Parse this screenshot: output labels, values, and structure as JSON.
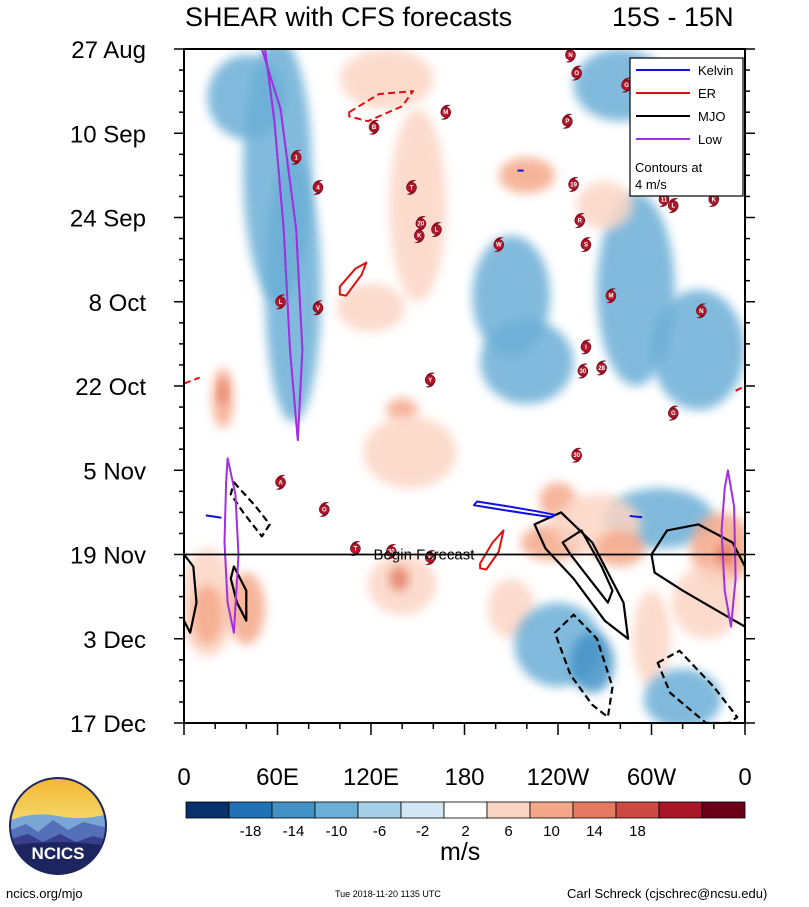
{
  "title_left": "SHEAR with CFS forecasts",
  "title_right": "15S - 15N",
  "footer": {
    "left": "ncics.org/mjo",
    "middle": "Tue 2018-11-20 1135 UTC",
    "right": "Carl Schreck (cjschrec@ncsu.edu)"
  },
  "logo_text": "NCICS",
  "colors": {
    "kelvin": "#1010e0",
    "er": "#e01010",
    "mjo": "#000000",
    "low": "#a030e0"
  },
  "chart_data": {
    "type": "heatmap",
    "title": "SHEAR with CFS forecasts",
    "subtitle": "15S - 15N",
    "x_ticks": [
      "0",
      "60E",
      "120E",
      "180",
      "120W",
      "60W",
      "0"
    ],
    "x_tick_degrees": [
      0,
      60,
      120,
      180,
      240,
      300,
      360
    ],
    "xlim": [
      0,
      360
    ],
    "y_ticks": [
      "27 Aug",
      "10 Sep",
      "24 Sep",
      "8 Oct",
      "22 Oct",
      "5 Nov",
      "19 Nov",
      "3 Dec",
      "17 Dec"
    ],
    "y_tick_days": [
      0,
      14,
      28,
      42,
      56,
      70,
      84,
      98,
      112
    ],
    "ylim": [
      0,
      112
    ],
    "forecast_day": 84,
    "forecast_label": "Begin Forecast",
    "legend": [
      {
        "name": "Kelvin",
        "color": "#1010e0"
      },
      {
        "name": "ER",
        "color": "#e01010"
      },
      {
        "name": "MJO",
        "color": "#000000"
      },
      {
        "name": "Low",
        "color": "#a030e0"
      }
    ],
    "legend_note_1": "Contours at",
    "legend_note_2": "4 m/s",
    "colorbar": {
      "units": "m/s",
      "labels": [
        "-18",
        "-14",
        "-10",
        "-6",
        "-2",
        "2",
        "6",
        "10",
        "14",
        "18"
      ],
      "colors": [
        "#08306b",
        "#2171b5",
        "#4292c6",
        "#6baed6",
        "#a6cfe8",
        "#d2e6f3",
        "#ffffff",
        "#fbd5c4",
        "#f4a889",
        "#e47a62",
        "#cd4a42",
        "#a81628",
        "#6b0019"
      ]
    },
    "field_blobs": [
      {
        "lon": 60,
        "day": 20,
        "rx": 22,
        "ry": 22,
        "v": -6
      },
      {
        "lon": 70,
        "day": 40,
        "rx": 18,
        "ry": 22,
        "v": -6
      },
      {
        "lon": 40,
        "day": 8,
        "rx": 25,
        "ry": 7,
        "v": -6
      },
      {
        "lon": 130,
        "day": 5,
        "rx": 30,
        "ry": 5,
        "v": 6
      },
      {
        "lon": 220,
        "day": 10,
        "rx": 40,
        "ry": 4,
        "v": -2
      },
      {
        "lon": 280,
        "day": 6,
        "rx": 30,
        "ry": 6,
        "v": -6
      },
      {
        "lon": 290,
        "day": 40,
        "rx": 25,
        "ry": 16,
        "v": -6
      },
      {
        "lon": 210,
        "day": 41,
        "rx": 25,
        "ry": 10,
        "v": -6
      },
      {
        "lon": 220,
        "day": 52,
        "rx": 30,
        "ry": 7,
        "v": -6
      },
      {
        "lon": 330,
        "day": 50,
        "rx": 30,
        "ry": 10,
        "v": -6
      },
      {
        "lon": 305,
        "day": 78,
        "rx": 35,
        "ry": 5,
        "v": -6
      },
      {
        "lon": 150,
        "day": 26,
        "rx": 18,
        "ry": 16,
        "v": 6
      },
      {
        "lon": 220,
        "day": 21,
        "rx": 18,
        "ry": 3,
        "v": 10
      },
      {
        "lon": 270,
        "day": 26,
        "rx": 18,
        "ry": 4,
        "v": 6
      },
      {
        "lon": 120,
        "day": 43,
        "rx": 22,
        "ry": 4,
        "v": 6
      },
      {
        "lon": 140,
        "day": 60,
        "rx": 10,
        "ry": 2,
        "v": 10
      },
      {
        "lon": 25,
        "day": 58,
        "rx": 7,
        "ry": 5,
        "v": 10
      },
      {
        "lon": 25,
        "day": 57,
        "rx": 3,
        "ry": 2,
        "v": 14
      },
      {
        "lon": 145,
        "day": 67,
        "rx": 30,
        "ry": 6,
        "v": 6
      },
      {
        "lon": 240,
        "day": 75,
        "rx": 12,
        "ry": 3,
        "v": 10
      },
      {
        "lon": 236,
        "day": 82,
        "rx": 20,
        "ry": 3,
        "v": 10
      },
      {
        "lon": 265,
        "day": 79,
        "rx": 28,
        "ry": 5,
        "v": 6
      },
      {
        "lon": 280,
        "day": 83,
        "rx": 16,
        "ry": 3,
        "v": 10
      },
      {
        "lon": 345,
        "day": 83,
        "rx": 20,
        "ry": 6,
        "v": 10
      },
      {
        "lon": 348,
        "day": 84,
        "rx": 6,
        "ry": 2,
        "v": 14
      },
      {
        "lon": 15,
        "day": 92,
        "rx": 18,
        "ry": 9,
        "v": 6
      },
      {
        "lon": 15,
        "day": 94,
        "rx": 10,
        "ry": 5,
        "v": 10
      },
      {
        "lon": 40,
        "day": 93,
        "rx": 12,
        "ry": 6,
        "v": 10
      },
      {
        "lon": 140,
        "day": 89,
        "rx": 22,
        "ry": 5,
        "v": 6
      },
      {
        "lon": 138,
        "day": 88,
        "rx": 6,
        "ry": 2,
        "v": 14
      },
      {
        "lon": 210,
        "day": 93,
        "rx": 15,
        "ry": 5,
        "v": 6
      },
      {
        "lon": 240,
        "day": 99,
        "rx": 28,
        "ry": 7,
        "v": -6
      },
      {
        "lon": 262,
        "day": 102,
        "rx": 14,
        "ry": 5,
        "v": -10
      },
      {
        "lon": 300,
        "day": 98,
        "rx": 12,
        "ry": 8,
        "v": 6
      },
      {
        "lon": 335,
        "day": 92,
        "rx": 22,
        "ry": 6,
        "v": 6
      },
      {
        "lon": 320,
        "day": 108,
        "rx": 25,
        "ry": 5,
        "v": -6
      }
    ],
    "kelvin_contours": [
      {
        "points": [
          [
            188,
            75.2
          ],
          [
            208,
            76
          ],
          [
            226,
            76.8
          ],
          [
            238,
            77.4
          ],
          [
            236,
            77.8
          ],
          [
            220,
            77.2
          ],
          [
            200,
            76.4
          ],
          [
            186,
            75.8
          ]
        ],
        "closed": true
      },
      {
        "points": [
          [
            214,
            20.2
          ],
          [
            218,
            20.2
          ]
        ],
        "closed": false
      },
      {
        "points": [
          [
            14,
            77.5
          ],
          [
            24,
            77.9
          ]
        ],
        "closed": false
      },
      {
        "points": [
          [
            286,
            77.6
          ],
          [
            294,
            77.8
          ]
        ],
        "closed": false
      }
    ],
    "er_contours": [
      {
        "points": [
          [
            106,
            10.5
          ],
          [
            125,
            7.5
          ],
          [
            147,
            7.0
          ],
          [
            140,
            9.5
          ],
          [
            118,
            12.0
          ],
          [
            106,
            11.2
          ]
        ],
        "closed": true,
        "dashed": true
      },
      {
        "points": [
          [
            100,
            39.5
          ],
          [
            110,
            36.5
          ],
          [
            117,
            35.5
          ],
          [
            114,
            37.5
          ],
          [
            104,
            41.0
          ],
          [
            100,
            40.8
          ]
        ],
        "closed": true,
        "dashed": false
      },
      {
        "points": [
          [
            190,
            85.5
          ],
          [
            198,
            82.0
          ],
          [
            205,
            80.0
          ],
          [
            202,
            83.5
          ],
          [
            194,
            86.5
          ],
          [
            190,
            86.3
          ]
        ],
        "closed": true,
        "dashed": false
      },
      {
        "points": [
          [
            0,
            55.6
          ],
          [
            10,
            54.6
          ]
        ],
        "closed": false,
        "dashed": true
      },
      {
        "points": [
          [
            354,
            56.8
          ],
          [
            360,
            56.0
          ]
        ],
        "closed": false,
        "dashed": true
      }
    ],
    "mjo_contours": [
      {
        "points": [
          [
            225,
            79
          ],
          [
            242,
            77
          ],
          [
            262,
            82
          ],
          [
            282,
            92
          ],
          [
            285,
            98
          ],
          [
            270,
            95
          ],
          [
            250,
            88
          ],
          [
            232,
            83
          ]
        ],
        "closed": true,
        "dashed": false
      },
      {
        "points": [
          [
            243,
            82
          ],
          [
            255,
            80
          ],
          [
            268,
            86
          ],
          [
            275,
            90
          ],
          [
            272,
            92
          ],
          [
            260,
            88
          ],
          [
            248,
            84
          ]
        ],
        "closed": true,
        "dashed": false
      },
      {
        "points": [
          [
            300,
            84
          ],
          [
            310,
            80
          ],
          [
            330,
            79
          ],
          [
            352,
            82
          ],
          [
            360,
            86
          ],
          [
            360,
            96
          ],
          [
            340,
            93
          ],
          [
            320,
            90
          ],
          [
            302,
            87
          ]
        ],
        "closed": true,
        "dashed": false
      },
      {
        "points": [
          [
            0,
            84
          ],
          [
            6,
            86
          ],
          [
            8,
            92
          ],
          [
            4,
            97
          ],
          [
            0,
            95
          ]
        ],
        "closed": false,
        "dashed": false
      },
      {
        "points": [
          [
            32,
            86
          ],
          [
            40,
            90
          ],
          [
            40,
            95
          ],
          [
            34,
            92
          ],
          [
            30,
            88
          ]
        ],
        "closed": true,
        "dashed": false
      },
      {
        "points": [
          [
            32,
            72
          ],
          [
            46,
            76
          ],
          [
            55,
            79
          ],
          [
            50,
            81
          ],
          [
            38,
            77
          ],
          [
            30,
            74
          ]
        ],
        "closed": true,
        "dashed": true
      },
      {
        "points": [
          [
            238,
            97
          ],
          [
            250,
            94
          ],
          [
            265,
            98
          ],
          [
            275,
            106
          ],
          [
            272,
            111
          ],
          [
            262,
            109
          ],
          [
            248,
            104
          ]
        ],
        "closed": true,
        "dashed": true
      },
      {
        "points": [
          [
            304,
            102
          ],
          [
            318,
            100
          ],
          [
            340,
            106
          ],
          [
            355,
            111
          ],
          [
            350,
            112
          ],
          [
            335,
            112
          ],
          [
            312,
            107
          ]
        ],
        "closed": true,
        "dashed": true
      }
    ],
    "low_contours": [
      {
        "points": [
          [
            50,
            0
          ],
          [
            62,
            10
          ],
          [
            72,
            30
          ],
          [
            76,
            50
          ],
          [
            73,
            65
          ],
          [
            68,
            50
          ],
          [
            64,
            30
          ],
          [
            58,
            12
          ],
          [
            52,
            0
          ]
        ],
        "closed": false
      },
      {
        "points": [
          [
            28,
            68
          ],
          [
            33,
            74
          ],
          [
            35,
            84
          ],
          [
            32,
            97
          ],
          [
            28,
            92
          ],
          [
            26,
            82
          ],
          [
            27,
            72
          ]
        ],
        "closed": true
      },
      {
        "points": [
          [
            349,
            70
          ],
          [
            353,
            76
          ],
          [
            354,
            88
          ],
          [
            351,
            96
          ],
          [
            347,
            90
          ],
          [
            345,
            80
          ],
          [
            347,
            73
          ]
        ],
        "closed": true
      }
    ],
    "storms": [
      {
        "label": "N",
        "lon": 248,
        "day": 1
      },
      {
        "label": "O",
        "lon": 252,
        "day": 4
      },
      {
        "label": "G",
        "lon": 284,
        "day": 6
      },
      {
        "label": "M",
        "lon": 168,
        "day": 10.5
      },
      {
        "label": "B",
        "lon": 122,
        "day": 13
      },
      {
        "label": "P",
        "lon": 246,
        "day": 12
      },
      {
        "label": "1",
        "lon": 72,
        "day": 18
      },
      {
        "label": "4",
        "lon": 86,
        "day": 23
      },
      {
        "label": "T",
        "lon": 146,
        "day": 23
      },
      {
        "label": "19",
        "lon": 250,
        "day": 22.5
      },
      {
        "label": "11",
        "lon": 308,
        "day": 25
      },
      {
        "label": "L",
        "lon": 314,
        "day": 26
      },
      {
        "label": "K",
        "lon": 340,
        "day": 25
      },
      {
        "label": "20",
        "lon": 152,
        "day": 29
      },
      {
        "label": "K",
        "lon": 151,
        "day": 31
      },
      {
        "label": "L",
        "lon": 162,
        "day": 30
      },
      {
        "label": "R",
        "lon": 254,
        "day": 28.5
      },
      {
        "label": "W",
        "lon": 202,
        "day": 32.5
      },
      {
        "label": "S",
        "lon": 258,
        "day": 32.5
      },
      {
        "label": "M",
        "lon": 274,
        "day": 41
      },
      {
        "label": "L",
        "lon": 62,
        "day": 42
      },
      {
        "label": "V",
        "lon": 86,
        "day": 43
      },
      {
        "label": "N",
        "lon": 332,
        "day": 43.5
      },
      {
        "label": "I",
        "lon": 258,
        "day": 49.5
      },
      {
        "label": "30",
        "lon": 256,
        "day": 53.5
      },
      {
        "label": "28",
        "lon": 268,
        "day": 53
      },
      {
        "label": "Y",
        "lon": 158,
        "day": 55
      },
      {
        "label": "G",
        "lon": 314,
        "day": 60.5
      },
      {
        "label": "30",
        "lon": 252,
        "day": 67.5
      },
      {
        "label": "A",
        "lon": 62,
        "day": 72
      },
      {
        "label": "O",
        "lon": 90,
        "day": 76.5
      },
      {
        "label": "T",
        "lon": 110,
        "day": 83
      },
      {
        "label": "30",
        "lon": 133,
        "day": 83.5
      },
      {
        "label": "30",
        "lon": 158,
        "day": 84.5
      }
    ]
  }
}
